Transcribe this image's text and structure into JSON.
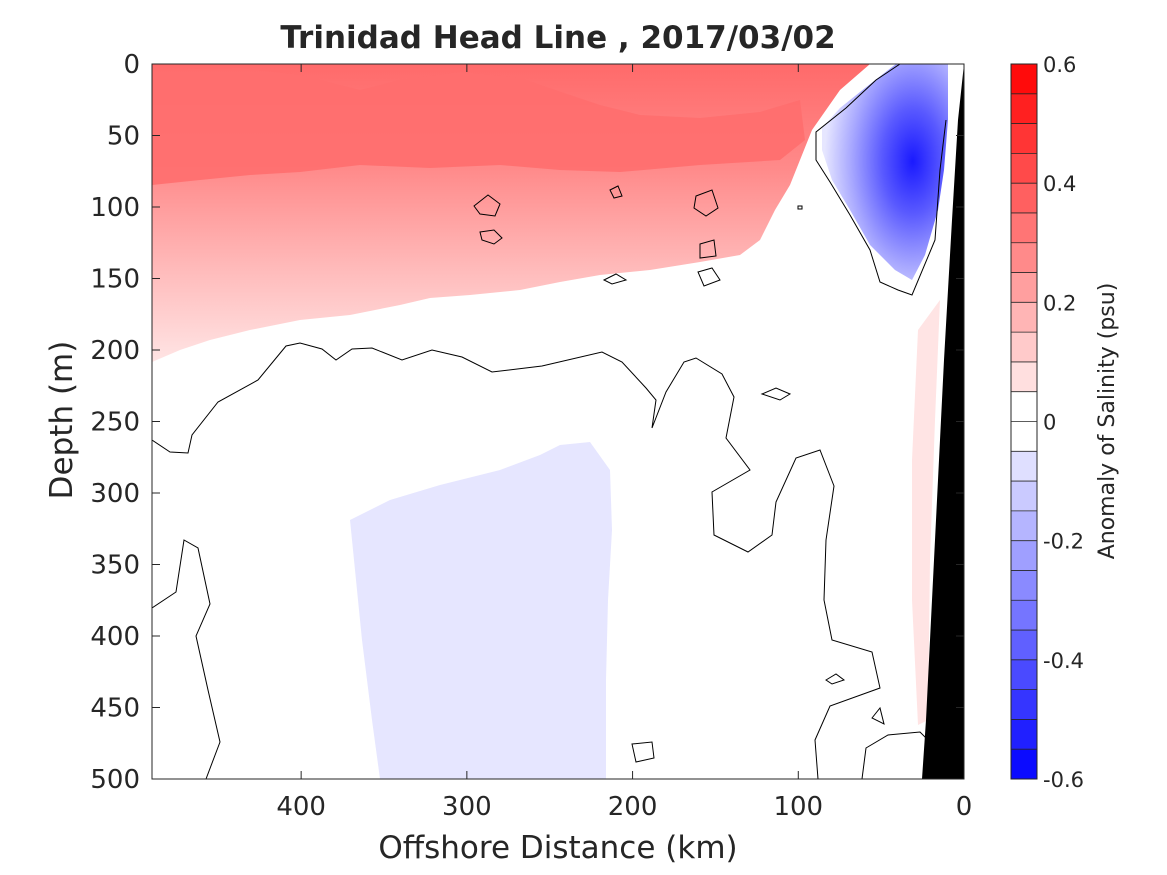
{
  "chart_data": {
    "type": "heatmap",
    "title": "Trinidad Head Line , 2017/03/02",
    "xlabel": "Offshore Distance (km)",
    "ylabel": "Depth (m)",
    "xlim": [
      490,
      0
    ],
    "ylim": [
      0,
      500
    ],
    "x_reversed": true,
    "y_reversed": true,
    "xticks": [
      "400",
      "300",
      "200",
      "100",
      "0"
    ],
    "xtick_values": [
      400,
      300,
      200,
      100,
      0
    ],
    "yticks": [
      "0",
      "50",
      "100",
      "150",
      "200",
      "250",
      "300",
      "350",
      "400",
      "450",
      "500"
    ],
    "ytick_values": [
      0,
      50,
      100,
      150,
      200,
      250,
      300,
      350,
      400,
      450,
      500
    ],
    "colorbar": {
      "label": "Anomaly of Salinity (psu)",
      "range": [
        -0.6,
        0.6
      ],
      "levels": 24,
      "ticks": [
        "0.6",
        "0.4",
        "0.2",
        "0",
        "-0.2",
        "-0.4",
        "-0.6"
      ],
      "tick_values": [
        0.6,
        0.4,
        0.2,
        0,
        -0.2,
        -0.4,
        -0.6
      ],
      "low_color": "#0000ff",
      "mid_color": "#ffffff",
      "high_color": "#ff0000"
    },
    "contour_levels": [
      0
    ],
    "regions": [
      {
        "name": "surface positive anomaly",
        "x_range": [
          490,
          60
        ],
        "depth_range": [
          0,
          200
        ],
        "peak_anomaly": 0.3
      },
      {
        "name": "nearshore negative anomaly",
        "x_range": [
          80,
          10
        ],
        "depth_range": [
          0,
          160
        ],
        "peak_anomaly": -0.5
      },
      {
        "name": "deep negative anomaly",
        "x_range": [
          355,
          218
        ],
        "depth_range": [
          265,
          500
        ],
        "peak_anomaly": -0.05
      },
      {
        "name": "nearshore deep positive anomaly",
        "x_range": [
          35,
          20
        ],
        "depth_range": [
          160,
          465
        ],
        "peak_anomaly": 0.05
      }
    ],
    "land_color": "#000000"
  }
}
